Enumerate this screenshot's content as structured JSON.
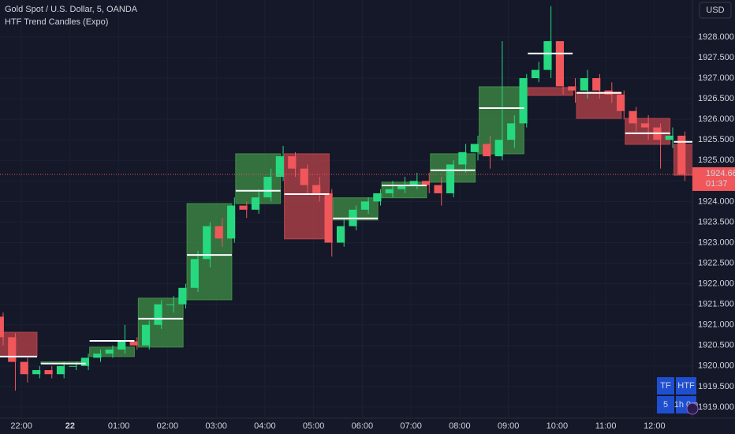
{
  "chart_data": {
    "type": "candlestick",
    "title": "Gold Spot / U.S. Dollar, 5, OANDA",
    "indicator": "HTF Trend Candles (Expo)",
    "currency": "USD",
    "up_color": "#26d980",
    "down_color": "#f0575a",
    "x": [
      -0.375,
      -0.125,
      0.125,
      0.375,
      0.625,
      0.875,
      1.125,
      1.375,
      1.625,
      1.875,
      2.125,
      2.375,
      2.625,
      2.875,
      3.125,
      3.375,
      3.625,
      3.875,
      4.125,
      4.375,
      4.625,
      4.875,
      5.125,
      5.375,
      5.625,
      5.875,
      6.125,
      6.375,
      6.625,
      6.875,
      7.125,
      7.375,
      7.625,
      7.875,
      8.125,
      8.375,
      8.625,
      8.875,
      9.125,
      9.375,
      9.625,
      9.875,
      10.125,
      10.375,
      10.625,
      10.875,
      11.125,
      11.375,
      11.625,
      11.875,
      12.125,
      12.375,
      12.625,
      12.875,
      13.125,
      13.375,
      13.625
    ],
    "open": [
      1921.2,
      1920.7,
      1920.1,
      1919.8,
      1919.9,
      1919.8,
      1920.0,
      1920.0,
      1920.2,
      1920.3,
      1920.4,
      1920.6,
      1920.5,
      1921.0,
      1921.5,
      1921.5,
      1921.9,
      1922.6,
      1923.4,
      1923.1,
      1923.9,
      1923.8,
      1924.1,
      1924.6,
      1925.1,
      1924.8,
      1924.4,
      1924.2,
      1923.0,
      1923.4,
      1923.8,
      1924.0,
      1924.2,
      1924.3,
      1924.4,
      1924.5,
      1924.4,
      1924.2,
      1924.9,
      1925.2,
      1925.4,
      1925.1,
      1925.5,
      1925.9,
      1927.0,
      1927.2,
      1927.9,
      1926.8,
      1926.7,
      1927.0,
      1926.7,
      1926.6,
      1926.2,
      1925.9,
      1925.8,
      1925.5,
      1925.6
    ],
    "high": [
      1921.3,
      1920.8,
      1920.2,
      1920.0,
      1920.0,
      1920.1,
      1920.1,
      1920.3,
      1920.4,
      1920.5,
      1921.0,
      1920.7,
      1921.1,
      1921.6,
      1921.7,
      1922.0,
      1922.8,
      1923.5,
      1923.6,
      1924.1,
      1924.0,
      1924.3,
      1924.8,
      1925.35,
      1925.2,
      1924.9,
      1924.6,
      1924.3,
      1923.6,
      1923.9,
      1924.1,
      1924.3,
      1924.5,
      1924.6,
      1924.7,
      1924.7,
      1924.6,
      1925.0,
      1925.4,
      1925.6,
      1925.6,
      1927.9,
      1926.1,
      1927.1,
      1927.4,
      1928.75,
      1927.9,
      1927.0,
      1927.2,
      1927.1,
      1926.9,
      1926.7,
      1926.3,
      1926.1,
      1925.9,
      1925.8,
      1925.7
    ],
    "low": [
      1920.5,
      1919.4,
      1919.6,
      1919.7,
      1919.7,
      1919.7,
      1919.9,
      1919.9,
      1920.1,
      1920.2,
      1920.3,
      1920.4,
      1920.4,
      1920.9,
      1921.3,
      1921.4,
      1921.8,
      1922.4,
      1922.9,
      1923.0,
      1923.6,
      1923.7,
      1924.0,
      1924.5,
      1924.6,
      1924.2,
      1924.0,
      1922.66,
      1922.9,
      1923.3,
      1923.7,
      1923.9,
      1924.1,
      1924.2,
      1924.3,
      1924.2,
      1923.9,
      1924.1,
      1924.7,
      1925.0,
      1924.8,
      1925.0,
      1925.3,
      1925.8,
      1926.9,
      1927.0,
      1926.6,
      1926.4,
      1926.5,
      1926.5,
      1926.4,
      1926.0,
      1925.7,
      1925.5,
      1924.8,
      1925.3,
      1924.5
    ],
    "close": [
      1920.7,
      1920.1,
      1919.8,
      1919.9,
      1919.8,
      1920.0,
      1920.0,
      1920.2,
      1920.3,
      1920.4,
      1920.6,
      1920.5,
      1921.0,
      1921.5,
      1921.5,
      1921.9,
      1922.6,
      1923.4,
      1923.1,
      1923.9,
      1923.8,
      1924.1,
      1924.6,
      1925.1,
      1924.8,
      1924.4,
      1924.2,
      1923.0,
      1923.4,
      1923.8,
      1924.0,
      1924.2,
      1924.3,
      1924.4,
      1924.5,
      1924.4,
      1924.2,
      1924.9,
      1925.2,
      1925.4,
      1925.1,
      1925.5,
      1925.9,
      1927.0,
      1927.2,
      1927.9,
      1926.8,
      1926.7,
      1927.0,
      1926.7,
      1926.6,
      1926.2,
      1925.9,
      1925.8,
      1925.5,
      1925.6,
      1924.66
    ],
    "htf": {
      "up_color": "#3f8f45",
      "down_color": "#b8434b",
      "level_color": "#ffffff",
      "x": [
        -0.6,
        0.4,
        1.4,
        2.4,
        3.4,
        4.4,
        5.4,
        6.4,
        7.4,
        8.4,
        9.4,
        10.4,
        11.4,
        12.4,
        13.4
      ],
      "open": [
        1920.82,
        1920.06,
        1920.23,
        1920.46,
        1921.61,
        1923.95,
        1925.16,
        1923.55,
        1924.09,
        1924.47,
        1925.16,
        1926.77,
        1926.66,
        1926.02,
        1925.39
      ],
      "close": [
        1920.23,
        1920.1,
        1920.46,
        1921.65,
        1923.95,
        1925.16,
        1923.09,
        1924.09,
        1924.47,
        1925.16,
        1926.79,
        1926.58,
        1926.02,
        1925.39,
        1924.64
      ],
      "level": [
        1920.23,
        1920.06,
        1920.61,
        1921.15,
        1922.7,
        1924.26,
        1924.18,
        1923.59,
        1924.39,
        1924.76,
        1926.27,
        1927.6,
        1926.64,
        1925.66,
        1925.45
      ]
    },
    "xlim": [
      -0.44,
      13.78
    ],
    "xticks": [
      {
        "value": 0,
        "label": "22:00"
      },
      {
        "value": 1,
        "label": "22"
      },
      {
        "value": 2,
        "label": "01:00"
      },
      {
        "value": 3,
        "label": "02:00"
      },
      {
        "value": 4,
        "label": "03:00"
      },
      {
        "value": 5,
        "label": "04:00"
      },
      {
        "value": 6,
        "label": "05:00"
      },
      {
        "value": 7,
        "label": "06:00"
      },
      {
        "value": 8,
        "label": "07:00"
      },
      {
        "value": 9,
        "label": "08:00"
      },
      {
        "value": 10,
        "label": "09:00"
      },
      {
        "value": 11,
        "label": "10:00"
      },
      {
        "value": 12,
        "label": "11:00"
      },
      {
        "value": 13,
        "label": "12:00"
      }
    ],
    "ylim": [
      1918.73,
      1928.9
    ],
    "yticks": [
      {
        "value": 1919,
        "label": "1919.000"
      },
      {
        "value": 1919.5,
        "label": "1919.500"
      },
      {
        "value": 1920,
        "label": "1920.000"
      },
      {
        "value": 1920.5,
        "label": "1920.500"
      },
      {
        "value": 1921,
        "label": "1921.000"
      },
      {
        "value": 1921.5,
        "label": "1921.500"
      },
      {
        "value": 1922,
        "label": "1922.000"
      },
      {
        "value": 1922.5,
        "label": "1922.500"
      },
      {
        "value": 1923,
        "label": "1923.000"
      },
      {
        "value": 1923.5,
        "label": "1923.500"
      },
      {
        "value": 1924,
        "label": "1924.000"
      },
      {
        "value": 1924.5,
        "label": "1924.500"
      },
      {
        "value": 1925,
        "label": "1925.000"
      },
      {
        "value": 1925.5,
        "label": "1925.500"
      },
      {
        "value": 1926,
        "label": "1926.000"
      },
      {
        "value": 1926.5,
        "label": "1926.500"
      },
      {
        "value": 1927,
        "label": "1927.000"
      },
      {
        "value": 1927.5,
        "label": "1927.500"
      },
      {
        "value": 1928,
        "label": "1928.000"
      }
    ],
    "grid": true,
    "last_price": {
      "value": 1924.66,
      "label": "1924.660"
    },
    "countdown": "01:37",
    "table": [
      [
        "TF",
        "HTF"
      ],
      [
        "5",
        "1h 0m"
      ]
    ]
  }
}
